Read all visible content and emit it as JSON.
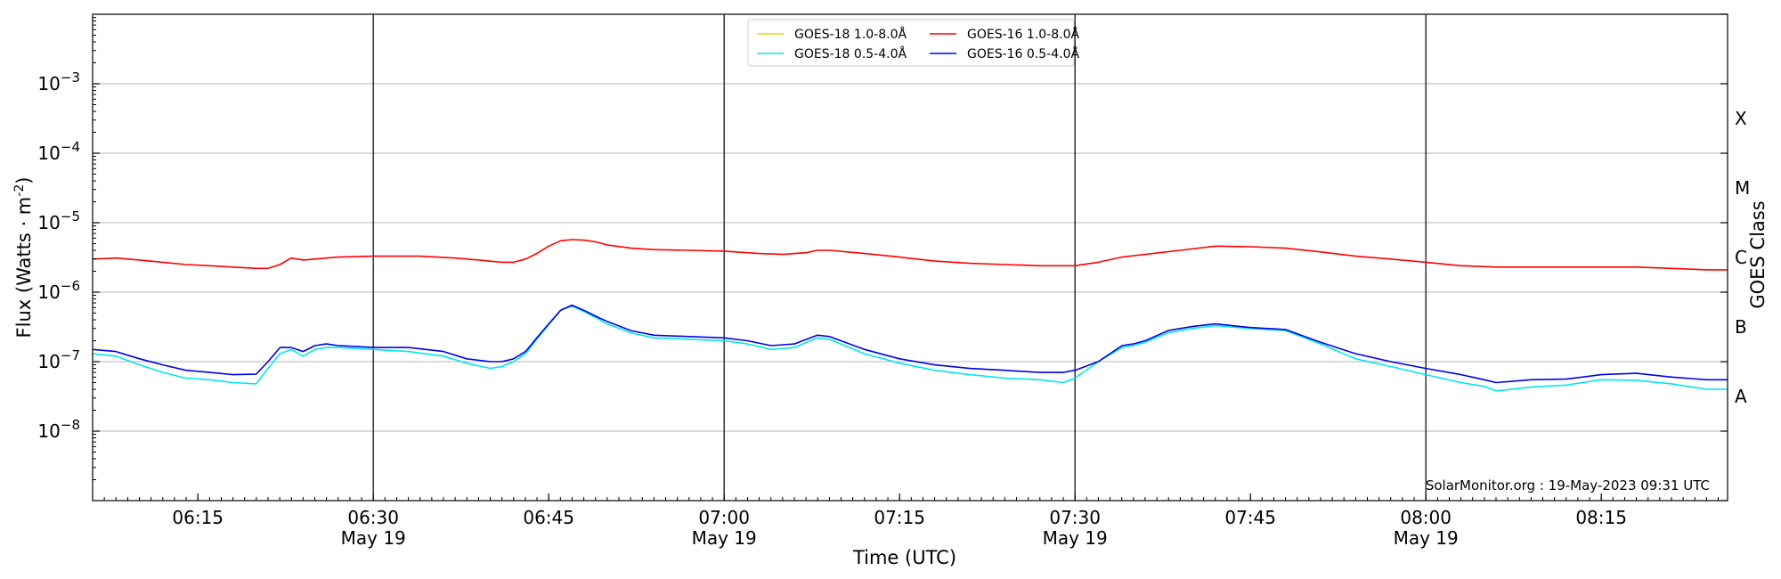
{
  "chart_data": {
    "type": "line",
    "xlabel": "Time (UTC)",
    "ylabel_main": "Flux (Watts · m",
    "ylabel_sup": "-2",
    "ylabel_close": ")",
    "right_label": "GOES Class",
    "credit": "SolarMonitor.org : 19-May-2023 09:31 UTC",
    "x_range_minutes": [
      6.1,
      8.43
    ],
    "y_log_range": [
      -9,
      -2
    ],
    "y_scale": "log",
    "x_ticks": [
      {
        "t": 6.25,
        "label": "06:15",
        "date": ""
      },
      {
        "t": 6.5,
        "label": "06:30",
        "date": "May 19"
      },
      {
        "t": 6.75,
        "label": "06:45",
        "date": ""
      },
      {
        "t": 7.0,
        "label": "07:00",
        "date": "May 19"
      },
      {
        "t": 7.25,
        "label": "07:15",
        "date": ""
      },
      {
        "t": 7.5,
        "label": "07:30",
        "date": "May 19"
      },
      {
        "t": 7.75,
        "label": "07:45",
        "date": ""
      },
      {
        "t": 8.0,
        "label": "08:00",
        "date": "May 19"
      },
      {
        "t": 8.25,
        "label": "08:15",
        "date": ""
      }
    ],
    "y_ticks": [
      {
        "exp": -8,
        "base": "10",
        "sup": "−8"
      },
      {
        "exp": -7,
        "base": "10",
        "sup": "−7"
      },
      {
        "exp": -6,
        "base": "10",
        "sup": "−6"
      },
      {
        "exp": -5,
        "base": "10",
        "sup": "−5"
      },
      {
        "exp": -4,
        "base": "10",
        "sup": "−4"
      },
      {
        "exp": -3,
        "base": "10",
        "sup": "−3"
      }
    ],
    "classes": [
      {
        "label": "A",
        "exp": -7.5
      },
      {
        "label": "B",
        "exp": -6.5
      },
      {
        "label": "C",
        "exp": -5.5
      },
      {
        "label": "M",
        "exp": -4.5
      },
      {
        "label": "X",
        "exp": -3.5
      }
    ],
    "vlines": [
      6.5,
      7.0,
      7.5,
      8.0
    ],
    "grid": true,
    "legend_position": "top-center",
    "legend": [
      {
        "label": "GOES-18 1.0-8.0Å",
        "color": "#f5d200"
      },
      {
        "label": "GOES-18 0.5-4.0Å",
        "color": "#00e6f0"
      },
      {
        "label": "GOES-16 1.0-8.0Å",
        "color": "#ff0000"
      },
      {
        "label": "GOES-16 0.5-4.0Å",
        "color": "#0000e6"
      }
    ],
    "series": [
      {
        "name": "GOES-16 1.0-8.0Å",
        "color": "#ff0000",
        "x": [
          6.1,
          6.133,
          6.167,
          6.2,
          6.233,
          6.267,
          6.3,
          6.333,
          6.35,
          6.367,
          6.383,
          6.4,
          6.417,
          6.433,
          6.45,
          6.5,
          6.567,
          6.617,
          6.65,
          6.683,
          6.7,
          6.717,
          6.733,
          6.75,
          6.767,
          6.783,
          6.8,
          6.817,
          6.833,
          6.867,
          6.9,
          6.95,
          7.0,
          7.05,
          7.083,
          7.117,
          7.133,
          7.15,
          7.2,
          7.25,
          7.3,
          7.35,
          7.4,
          7.45,
          7.483,
          7.5,
          7.533,
          7.567,
          7.6,
          7.65,
          7.7,
          7.75,
          7.8,
          7.85,
          7.9,
          7.95,
          8.0,
          8.05,
          8.1,
          8.15,
          8.2,
          8.25,
          8.3,
          8.35,
          8.4,
          8.43
        ],
        "y": [
          3e-06,
          3.1e-06,
          2.9e-06,
          2.7e-06,
          2.5e-06,
          2.4e-06,
          2.3e-06,
          2.2e-06,
          2.2e-06,
          2.5e-06,
          3.1e-06,
          2.9e-06,
          3e-06,
          3.1e-06,
          3.2e-06,
          3.3e-06,
          3.3e-06,
          3.1e-06,
          2.9e-06,
          2.7e-06,
          2.7e-06,
          3e-06,
          3.6e-06,
          4.6e-06,
          5.5e-06,
          5.7e-06,
          5.6e-06,
          5.3e-06,
          4.8e-06,
          4.3e-06,
          4.1e-06,
          4e-06,
          3.9e-06,
          3.6e-06,
          3.5e-06,
          3.7e-06,
          4e-06,
          4e-06,
          3.6e-06,
          3.2e-06,
          2.8e-06,
          2.6e-06,
          2.5e-06,
          2.4e-06,
          2.4e-06,
          2.4e-06,
          2.7e-06,
          3.2e-06,
          3.5e-06,
          4e-06,
          4.6e-06,
          4.5e-06,
          4.3e-06,
          3.8e-06,
          3.3e-06,
          3e-06,
          2.7e-06,
          2.4e-06,
          2.3e-06,
          2.3e-06,
          2.3e-06,
          2.3e-06,
          2.3e-06,
          2.2e-06,
          2.1e-06,
          2.1e-06
        ]
      },
      {
        "name": "GOES-16 0.5-4.0Å",
        "color": "#0000e6",
        "x": [
          6.1,
          6.133,
          6.167,
          6.2,
          6.233,
          6.267,
          6.3,
          6.333,
          6.35,
          6.367,
          6.383,
          6.4,
          6.417,
          6.433,
          6.45,
          6.5,
          6.55,
          6.6,
          6.633,
          6.667,
          6.683,
          6.7,
          6.717,
          6.733,
          6.75,
          6.767,
          6.783,
          6.8,
          6.817,
          6.833,
          6.867,
          6.9,
          6.95,
          7.0,
          7.033,
          7.067,
          7.1,
          7.133,
          7.15,
          7.2,
          7.25,
          7.3,
          7.35,
          7.4,
          7.45,
          7.483,
          7.5,
          7.533,
          7.567,
          7.583,
          7.6,
          7.633,
          7.667,
          7.7,
          7.75,
          7.8,
          7.85,
          7.9,
          7.95,
          8.0,
          8.05,
          8.083,
          8.1,
          8.15,
          8.2,
          8.25,
          8.3,
          8.35,
          8.4,
          8.43
        ],
        "y": [
          1.5e-07,
          1.4e-07,
          1.1e-07,
          9e-08,
          7.5e-08,
          7e-08,
          6.5e-08,
          6.6e-08,
          1e-07,
          1.6e-07,
          1.6e-07,
          1.4e-07,
          1.7e-07,
          1.8e-07,
          1.7e-07,
          1.6e-07,
          1.6e-07,
          1.4e-07,
          1.1e-07,
          1e-07,
          1e-07,
          1.1e-07,
          1.4e-07,
          2.2e-07,
          3.5e-07,
          5.5e-07,
          6.5e-07,
          5.5e-07,
          4.5e-07,
          3.8e-07,
          2.8e-07,
          2.4e-07,
          2.3e-07,
          2.2e-07,
          2e-07,
          1.7e-07,
          1.8e-07,
          2.4e-07,
          2.3e-07,
          1.5e-07,
          1.1e-07,
          9e-08,
          8e-08,
          7.5e-08,
          7e-08,
          7e-08,
          7.5e-08,
          1e-07,
          1.7e-07,
          1.8e-07,
          2e-07,
          2.8e-07,
          3.2e-07,
          3.5e-07,
          3.1e-07,
          2.9e-07,
          1.9e-07,
          1.3e-07,
          1e-07,
          8e-08,
          6.5e-08,
          5.5e-08,
          5e-08,
          5.5e-08,
          5.6e-08,
          6.5e-08,
          6.8e-08,
          6e-08,
          5.5e-08,
          5.5e-08
        ]
      },
      {
        "name": "GOES-18 0.5-4.0Å",
        "color": "#00e6f0",
        "x": [
          6.1,
          6.133,
          6.167,
          6.2,
          6.233,
          6.267,
          6.3,
          6.333,
          6.35,
          6.367,
          6.383,
          6.4,
          6.417,
          6.433,
          6.45,
          6.5,
          6.55,
          6.6,
          6.633,
          6.667,
          6.683,
          6.7,
          6.717,
          6.733,
          6.75,
          6.767,
          6.783,
          6.8,
          6.817,
          6.833,
          6.867,
          6.9,
          6.95,
          7.0,
          7.033,
          7.067,
          7.1,
          7.133,
          7.15,
          7.2,
          7.25,
          7.3,
          7.35,
          7.4,
          7.45,
          7.483,
          7.5,
          7.533,
          7.567,
          7.583,
          7.6,
          7.633,
          7.667,
          7.7,
          7.75,
          7.8,
          7.85,
          7.9,
          7.95,
          8.0,
          8.05,
          8.083,
          8.1,
          8.15,
          8.2,
          8.25,
          8.3,
          8.35,
          8.4,
          8.43
        ],
        "y": [
          1.3e-07,
          1.2e-07,
          9e-08,
          7e-08,
          5.8e-08,
          5.5e-08,
          5e-08,
          4.8e-08,
          8e-08,
          1.3e-07,
          1.5e-07,
          1.2e-07,
          1.5e-07,
          1.6e-07,
          1.6e-07,
          1.5e-07,
          1.4e-07,
          1.2e-07,
          9.5e-08,
          8e-08,
          8.5e-08,
          1e-07,
          1.3e-07,
          2.1e-07,
          3.4e-07,
          5.5e-07,
          6.3e-07,
          5.3e-07,
          4.3e-07,
          3.5e-07,
          2.6e-07,
          2.2e-07,
          2.1e-07,
          2e-07,
          1.8e-07,
          1.5e-07,
          1.6e-07,
          2.2e-07,
          2.1e-07,
          1.3e-07,
          9.5e-08,
          7.5e-08,
          6.5e-08,
          5.8e-08,
          5.5e-08,
          5e-08,
          5.8e-08,
          1e-07,
          1.6e-07,
          1.7e-07,
          1.9e-07,
          2.6e-07,
          3e-07,
          3.3e-07,
          3e-07,
          2.8e-07,
          1.8e-07,
          1.1e-07,
          8.5e-08,
          6.5e-08,
          5e-08,
          4.4e-08,
          3.8e-08,
          4.3e-08,
          4.6e-08,
          5.5e-08,
          5.4e-08,
          4.8e-08,
          4e-08,
          4e-08
        ]
      }
    ]
  }
}
